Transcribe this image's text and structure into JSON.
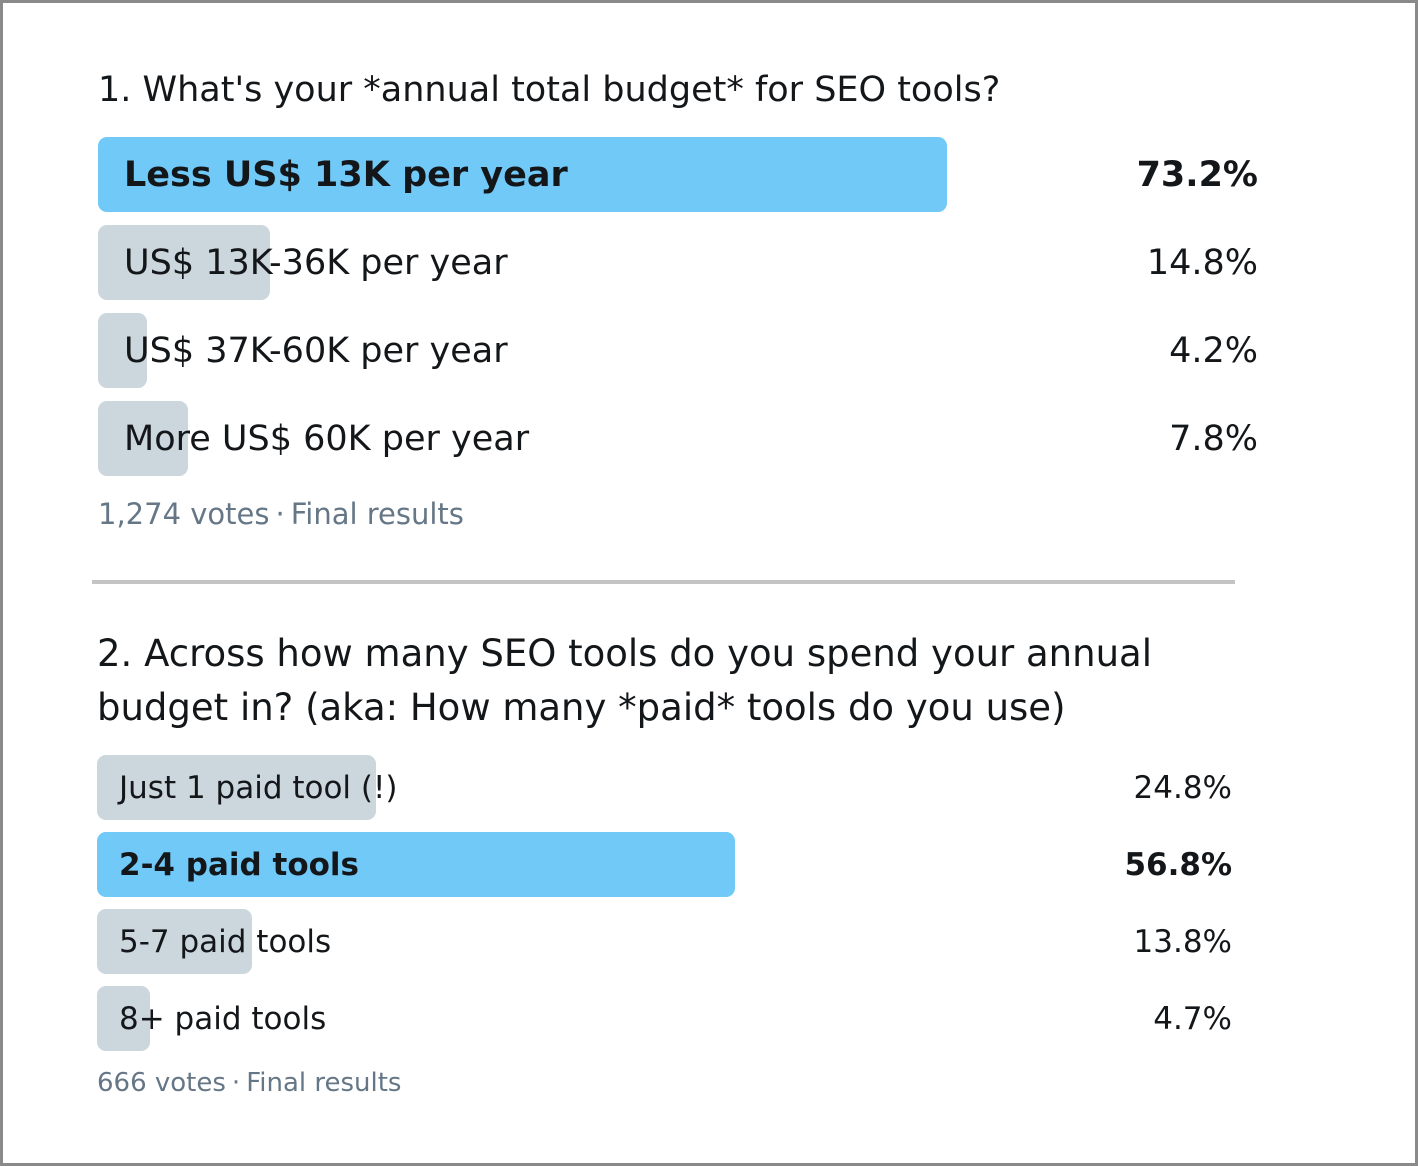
{
  "poll1": {
    "question": "1. What's your *annual total budget* for SEO tools?",
    "options": [
      {
        "label": "Less US$ 13K per year",
        "percent": "73.2%",
        "value": 73.2,
        "winner": true
      },
      {
        "label": "US$ 13K-36K per year",
        "percent": "14.8%",
        "value": 14.8,
        "winner": false
      },
      {
        "label": "US$ 37K-60K per year",
        "percent": "4.2%",
        "value": 4.2,
        "winner": false
      },
      {
        "label": "More US$ 60K per year",
        "percent": "7.8%",
        "value": 7.8,
        "winner": false
      }
    ],
    "votes": "1,274 votes",
    "separator": "·",
    "status": "Final results"
  },
  "poll2": {
    "question": "2. Across how many SEO tools do you spend your annual budget in? (aka: How many *paid* tools do you use)",
    "options": [
      {
        "label": "Just 1 paid tool (!)",
        "percent": "24.8%",
        "value": 24.8,
        "winner": false
      },
      {
        "label": "2-4 paid tools",
        "percent": "56.8%",
        "value": 56.8,
        "winner": true
      },
      {
        "label": "5-7 paid tools",
        "percent": "13.8%",
        "value": 13.8,
        "winner": false
      },
      {
        "label": "8+ paid tools",
        "percent": "4.7%",
        "value": 4.7,
        "winner": false
      }
    ],
    "votes": "666 votes",
    "separator": "·",
    "status": "Final results"
  },
  "colors": {
    "winner_bar": "#71c9f8",
    "bar": "#ccd6dd",
    "secondary_text": "#657786",
    "text": "#14171a"
  }
}
